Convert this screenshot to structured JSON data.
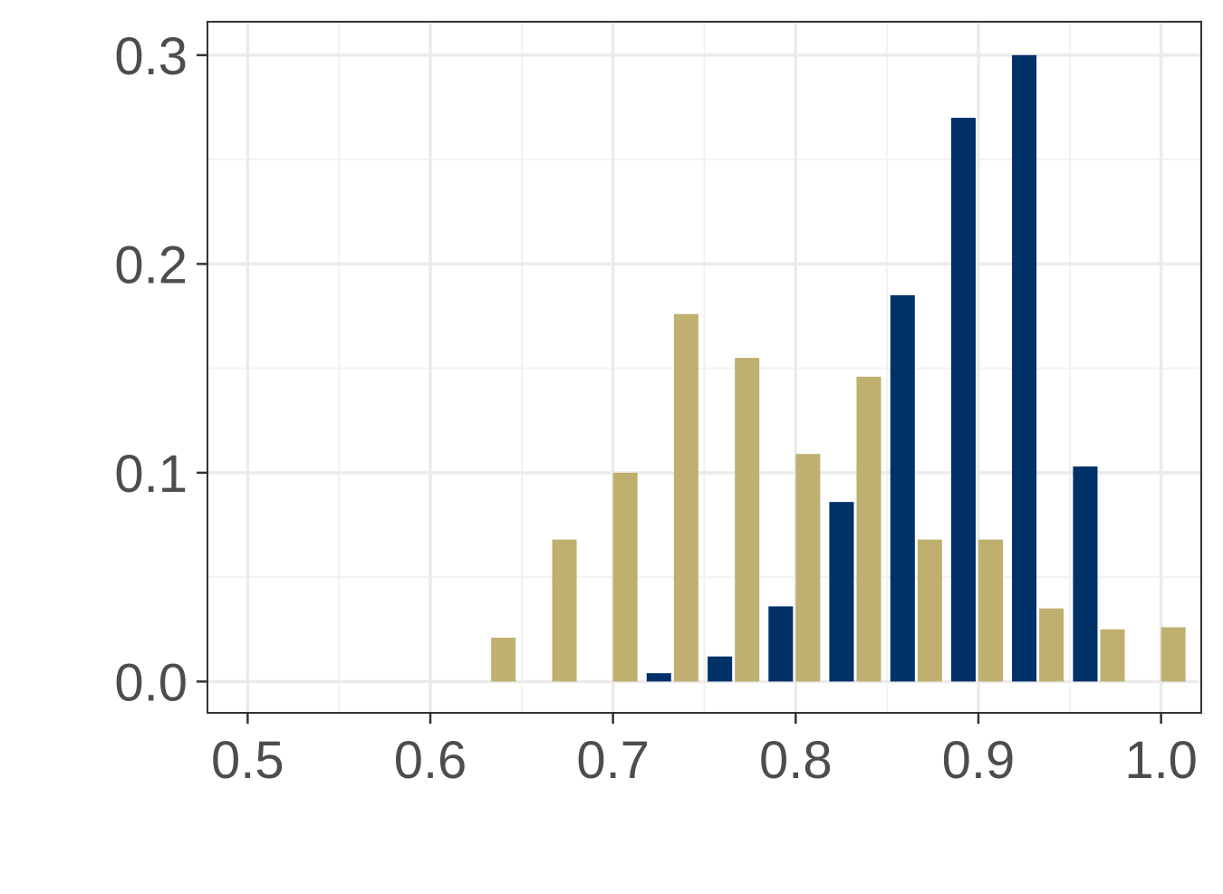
{
  "chart_data": {
    "type": "bar",
    "title": "",
    "xlabel": "",
    "ylabel": "",
    "xlim": [
      0.478,
      1.022
    ],
    "ylim": [
      -0.015,
      0.316
    ],
    "x_ticks": [
      0.5,
      0.6,
      0.7,
      0.8,
      0.9,
      1.0
    ],
    "x_tick_labels": [
      "0.5",
      "0.6",
      "0.7",
      "0.8",
      "0.9",
      "1.0"
    ],
    "y_ticks": [
      0.0,
      0.1,
      0.2,
      0.3
    ],
    "y_tick_labels": [
      "0.0",
      "0.1",
      "0.2",
      "0.3"
    ],
    "grid": true,
    "legend": "none",
    "bin_centers": [
      0.6333,
      0.6667,
      0.7,
      0.7333,
      0.7667,
      0.8,
      0.8333,
      0.8667,
      0.9,
      0.9333,
      0.9667,
      1.0
    ],
    "series": [
      {
        "color": "#003169",
        "values": [
          0,
          0,
          0,
          0.004,
          0.012,
          0.036,
          0.086,
          0.185,
          0.27,
          0.3,
          0.103,
          0
        ]
      },
      {
        "color": "#bfb070",
        "values": [
          0.021,
          0.068,
          0.1,
          0.176,
          0.155,
          0.109,
          0.146,
          0.068,
          0.068,
          0.035,
          0.025,
          0.026
        ]
      }
    ],
    "colors": {
      "background": "#ffffff",
      "panel_border": "#333333",
      "grid_major": "#ebebeb",
      "grid_minor": "#f2f2f2",
      "tick_text": "#4d4d4d",
      "tick_mark": "#333333"
    }
  }
}
